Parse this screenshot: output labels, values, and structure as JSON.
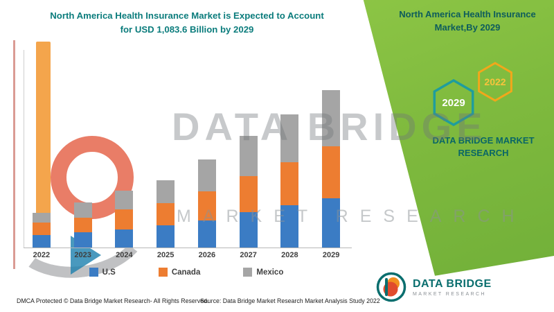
{
  "title": {
    "line1": "North America Health Insurance Market is Expected to Account",
    "line2": "for USD 1,083.6 Billion by 2029",
    "color": "#0b7c7c"
  },
  "right_panel": {
    "heading_line1": "North America Health Insurance",
    "heading_line2": "Market,By 2029",
    "hexagons": [
      {
        "label": "2029",
        "border_color": "#1f9d9d",
        "text_color": "#ffffff"
      },
      {
        "label": "2022",
        "border_color": "#f2a71b",
        "text_color": "#f8c33c"
      }
    ],
    "brand_line1": "DATA BRIDGE MARKET",
    "brand_line2": "RESEARCH",
    "panel_color": "#7fba3e"
  },
  "watermark": {
    "line1": "DATA BRIDGE",
    "line2": "MARKET RESEARCH"
  },
  "chart_data": {
    "type": "bar",
    "stacked": true,
    "title": "North America Health Insurance Market is Expected to Account for USD 1,083.6 Billion by 2029",
    "unit": "USD Billion",
    "categories": [
      "2022",
      "2023",
      "2024",
      "2025",
      "2026",
      "2027",
      "2028",
      "2029"
    ],
    "series": [
      {
        "name": "U.S",
        "color": "#3b7cc4",
        "values": [
          85,
          103,
          122,
          155,
          188,
          245,
          292,
          340
        ]
      },
      {
        "name": "Canada",
        "color": "#ed7d31",
        "values": [
          85,
          104,
          140,
          150,
          198,
          245,
          295,
          358
        ]
      },
      {
        "name": "Mexico",
        "color": "#a5a5a5",
        "values": [
          67,
          105,
          130,
          160,
          220,
          278,
          330,
          385.6
        ]
      }
    ],
    "totals": [
      237,
      312,
      392,
      465,
      606,
      768,
      917,
      1083.6
    ],
    "ylim": [
      0,
      1350
    ],
    "grid": false,
    "legend_position": "bottom"
  },
  "footer": {
    "left": "DMCA Protected © Data Bridge Market Research- All Rights Reserved.",
    "source": "Source: Data Bridge Market Research Market Analysis Study 2022"
  },
  "logo": {
    "name": "DATA BRIDGE",
    "sub": "MARKET RESEARCH"
  }
}
